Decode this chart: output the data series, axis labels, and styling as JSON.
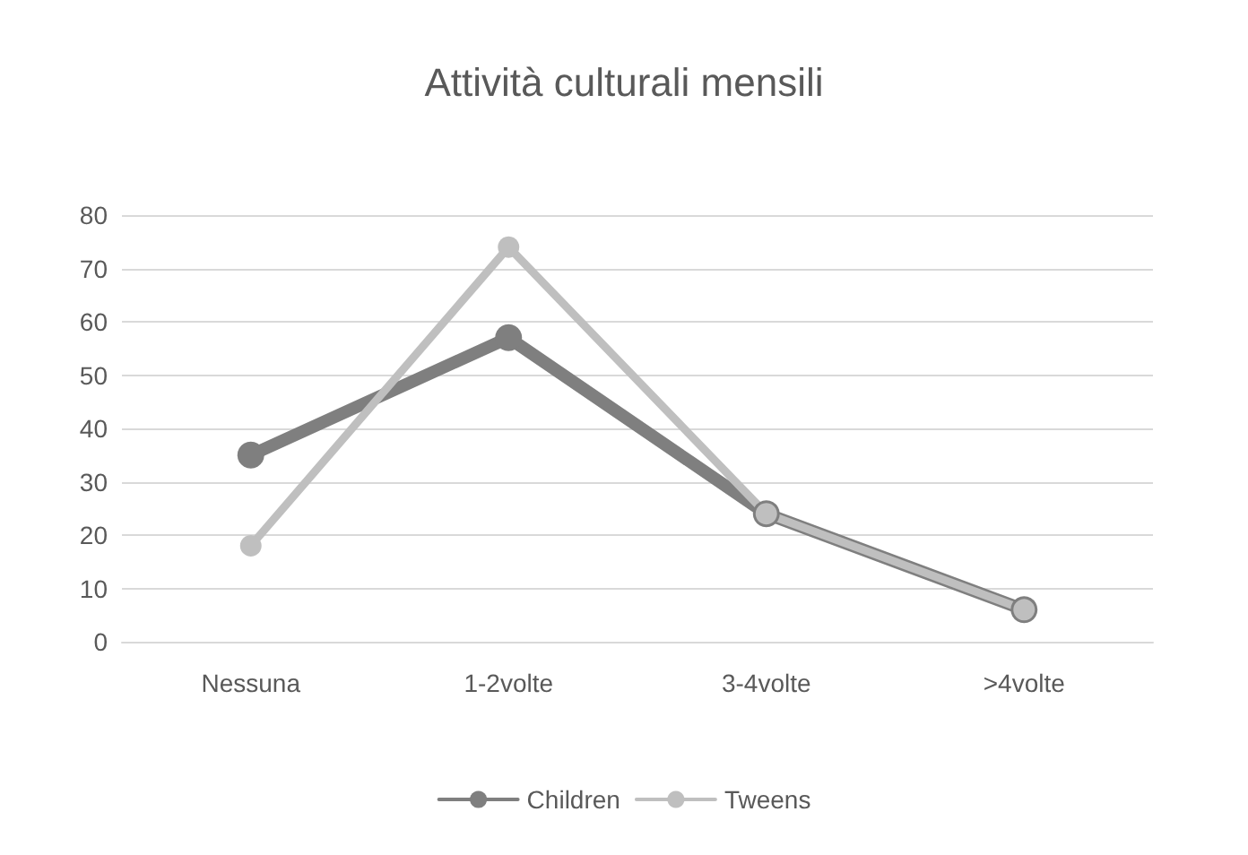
{
  "chart_data": {
    "type": "line",
    "title": "Attività culturali mensili",
    "categories": [
      "Nessuna",
      "1-2volte",
      "3-4volte",
      ">4volte"
    ],
    "series": [
      {
        "name": "Children",
        "color": "#7f7f7f",
        "values": [
          35,
          57,
          24,
          6
        ]
      },
      {
        "name": "Tweens",
        "color": "#bfbfbf",
        "values": [
          18,
          74,
          24,
          6
        ]
      }
    ],
    "ylim": [
      0,
      80
    ],
    "yticks": [
      0,
      10,
      20,
      30,
      40,
      50,
      60,
      70,
      80
    ],
    "grid": "y",
    "legend": "bottom",
    "marker": "circle",
    "line_style": "solid"
  }
}
